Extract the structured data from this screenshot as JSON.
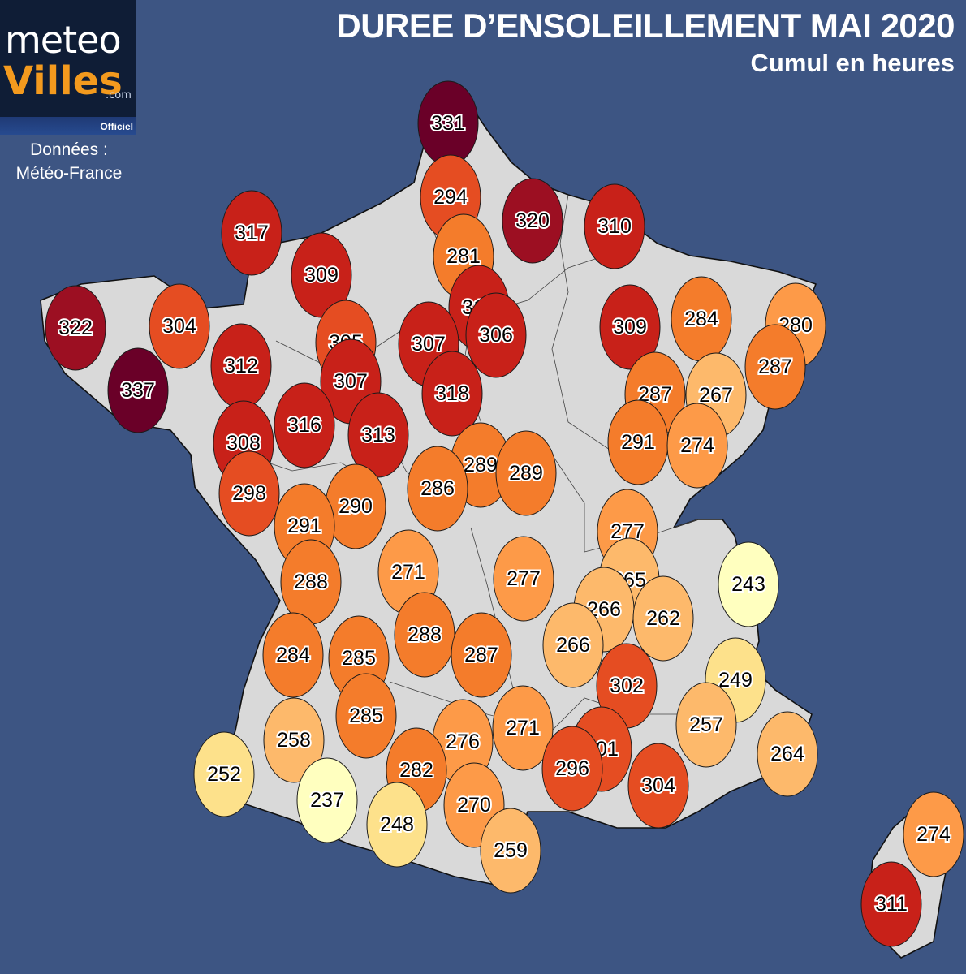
{
  "title": "DUREE D’ENSOLEILLEMENT MAI 2020",
  "subtitle": "Cumul en heures",
  "logo": {
    "line1": "meteo",
    "line2": "Villes",
    "suffix": ".com",
    "tag": "Officiel"
  },
  "source": {
    "line1": "Données :",
    "line2": "Météo-France"
  },
  "color_scale": [
    "#ffffbf",
    "#fde18b",
    "#fdb96b",
    "#fd9a48",
    "#f47c2b",
    "#e54d22",
    "#c82119",
    "#9c0f22",
    "#6a0028"
  ],
  "scale_range": [
    237,
    337
  ],
  "stations": [
    331,
    294,
    320,
    310,
    317,
    281,
    309,
    314,
    322,
    304,
    309,
    284,
    280,
    305,
    307,
    306,
    312,
    337,
    307,
    318,
    287,
    287,
    267,
    313,
    316,
    308,
    289,
    289,
    291,
    274,
    298,
    290,
    286,
    291,
    277,
    271,
    277,
    288,
    265,
    243,
    266,
    262,
    288,
    287,
    266,
    284,
    285,
    302,
    249,
    285,
    258,
    257,
    276,
    271,
    301,
    252,
    282,
    296,
    264,
    237,
    304,
    270,
    248,
    259,
    274,
    311
  ]
}
